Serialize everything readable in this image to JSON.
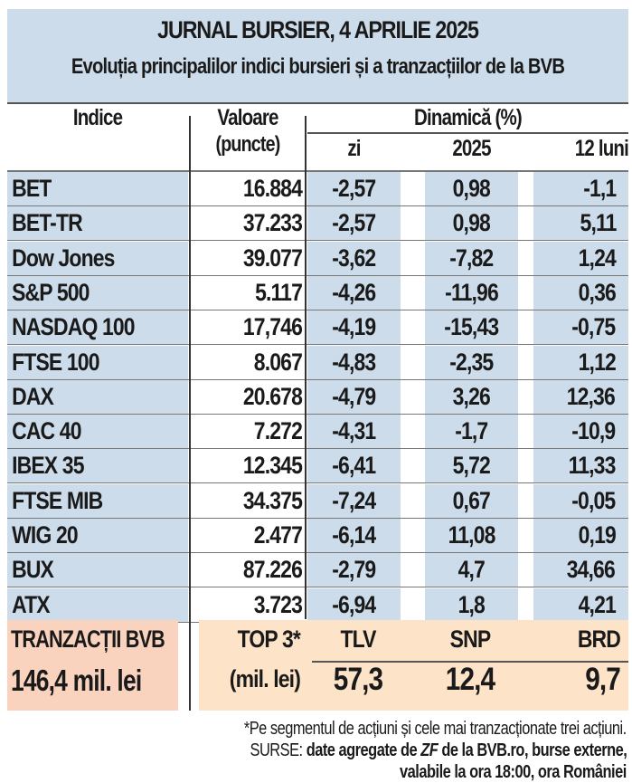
{
  "title": "JURNAL BURSIER, 4 APRILIE 2025",
  "subtitle": "Evoluția principalilor indici bursieri și a tranzacțiilor de la BVB",
  "headers": {
    "indice": "Indice",
    "valoare": "Valoare",
    "valoare_unit": "(puncte)",
    "dinamica": "Dinamică (%)",
    "zi": "zi",
    "y2025": "2025",
    "luni12": "12 luni"
  },
  "rows": [
    {
      "name": "BET",
      "value": "16.884",
      "zi": "-2,57",
      "y2025": "0,98",
      "luni12": "-1,1"
    },
    {
      "name": "BET-TR",
      "value": "37.233",
      "zi": "-2,57",
      "y2025": "0,98",
      "luni12": "5,11"
    },
    {
      "name": "Dow Jones",
      "value": "39.077",
      "zi": "-3,62",
      "y2025": "-7,82",
      "luni12": "1,24"
    },
    {
      "name": "S&P 500",
      "value": "5.117",
      "zi": "-4,26",
      "y2025": "-11,96",
      "luni12": "0,36"
    },
    {
      "name": "NASDAQ 100",
      "value": "17,746",
      "zi": "-4,19",
      "y2025": "-15,43",
      "luni12": "-0,75"
    },
    {
      "name": "FTSE 100",
      "value": "8.067",
      "zi": "-4,83",
      "y2025": "-2,35",
      "luni12": "1,12"
    },
    {
      "name": "DAX",
      "value": "20.678",
      "zi": "-4,79",
      "y2025": "3,26",
      "luni12": "12,36"
    },
    {
      "name": "CAC 40",
      "value": "7.272",
      "zi": "-4,31",
      "y2025": "-1,7",
      "luni12": "-10,9"
    },
    {
      "name": "IBEX 35",
      "value": "12.345",
      "zi": "-6,41",
      "y2025": "5,72",
      "luni12": "11,33"
    },
    {
      "name": "FTSE MIB",
      "value": "34.375",
      "zi": "-7,24",
      "y2025": "0,67",
      "luni12": "-0,05"
    },
    {
      "name": "WIG 20",
      "value": "2.477",
      "zi": "-6,14",
      "y2025": "11,08",
      "luni12": "0,19"
    },
    {
      "name": "BUX",
      "value": "87.226",
      "zi": "-2,79",
      "y2025": "4,7",
      "luni12": "34,66"
    },
    {
      "name": "ATX",
      "value": "3.723",
      "zi": "-6,94",
      "y2025": "1,8",
      "luni12": "4,21"
    }
  ],
  "bvb": {
    "label": "TRANZACȚII BVB",
    "total": "146,4 mil. lei",
    "top_label": "TOP 3*",
    "top_unit": "(mil. lei)",
    "top": [
      {
        "ticker": "TLV",
        "value": "57,3"
      },
      {
        "ticker": "SNP",
        "value": "12,4"
      },
      {
        "ticker": "BRD",
        "value": "9,7"
      }
    ]
  },
  "footnote": "*Pe segmentul de acțiuni și cele mai tranzacționate trei acțiuni.",
  "sources_label": "SURSE:",
  "sources_1a": "date agregate de ",
  "sources_zf": "ZF",
  "sources_1b": " de la BVB.ro, burse externe,",
  "sources_2": "valabile la ora 18:00, ora României",
  "colors": {
    "blue": "#cddcea",
    "salmon": "#f9d3bd",
    "peach": "#fde4c9"
  }
}
